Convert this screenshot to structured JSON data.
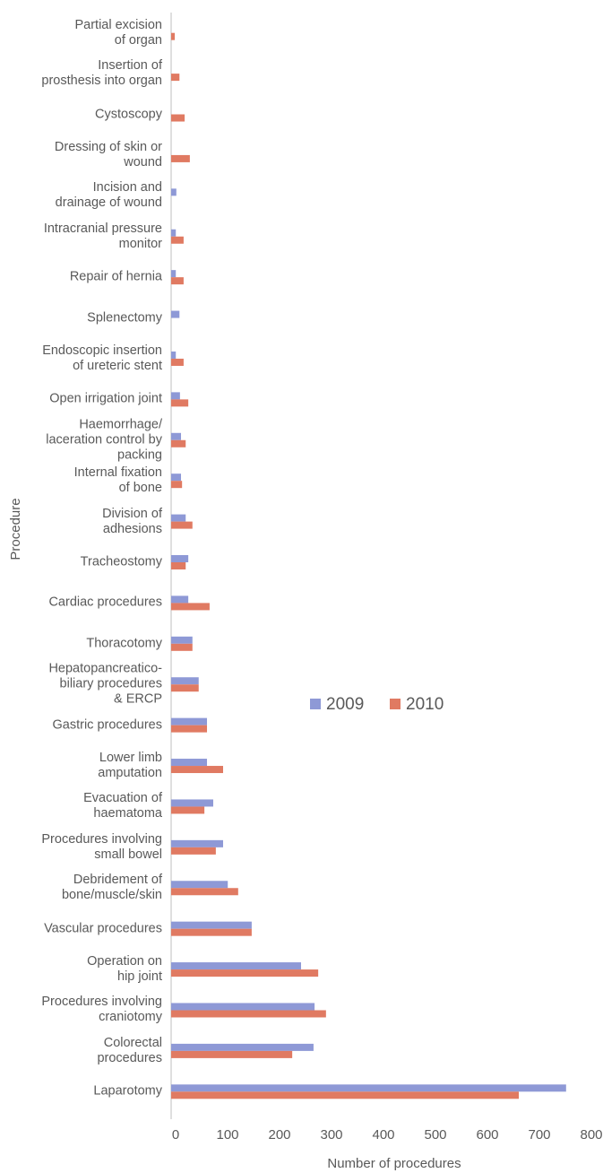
{
  "chart_data": {
    "type": "bar",
    "orientation": "horizontal",
    "x_label": "Number of procedures",
    "y_label": "Procedure",
    "categories": [
      "Partial excision\nof organ",
      "Insertion of\nprosthesis into organ",
      "Cystoscopy",
      "Dressing of skin or\nwound",
      "Incision and\ndrainage of wound",
      "Intracranial pressure\nmonitor",
      "Repair of hernia",
      "Splenectomy",
      "Endoscopic insertion\nof ureteric stent",
      "Open irrigation joint",
      "Haemorrhage/\nlaceration control by\npacking",
      "Internal fixation\nof bone",
      "Division of\nadhesions",
      "Tracheostomy",
      "Cardiac procedures",
      "Thoracotomy",
      "Hepatopancreatico-\nbiliary procedures\n& ERCP",
      "Gastric procedures",
      "Lower limb\namputation",
      "Evacuation of\nhaematoma",
      "Procedures involving\nsmall bowel",
      "Debridement of\nbone/muscle/skin",
      "Vascular procedures",
      "Operation on\nhip joint",
      "Procedures involving\ncraniotomy",
      "Colorectal\nprocedures",
      "Laparotomy"
    ],
    "series": [
      {
        "name": "2009",
        "color": "#8e99d6",
        "values": [
          0,
          0,
          0,
          0,
          10,
          9,
          9,
          16,
          9,
          17,
          19,
          19,
          28,
          33,
          33,
          41,
          53,
          69,
          69,
          81,
          100,
          109,
          155,
          250,
          276,
          274,
          760
        ]
      },
      {
        "name": "2010",
        "color": "#e07a62",
        "values": [
          7,
          16,
          26,
          36,
          0,
          24,
          24,
          0,
          24,
          33,
          28,
          21,
          41,
          28,
          74,
          41,
          53,
          69,
          100,
          64,
          86,
          129,
          155,
          283,
          298,
          233,
          669
        ]
      }
    ],
    "xlim": [
      0,
      800
    ],
    "xticks": [
      0,
      100,
      200,
      300,
      400,
      500,
      600,
      700,
      800
    ],
    "grid": false,
    "legend": "center-right"
  }
}
